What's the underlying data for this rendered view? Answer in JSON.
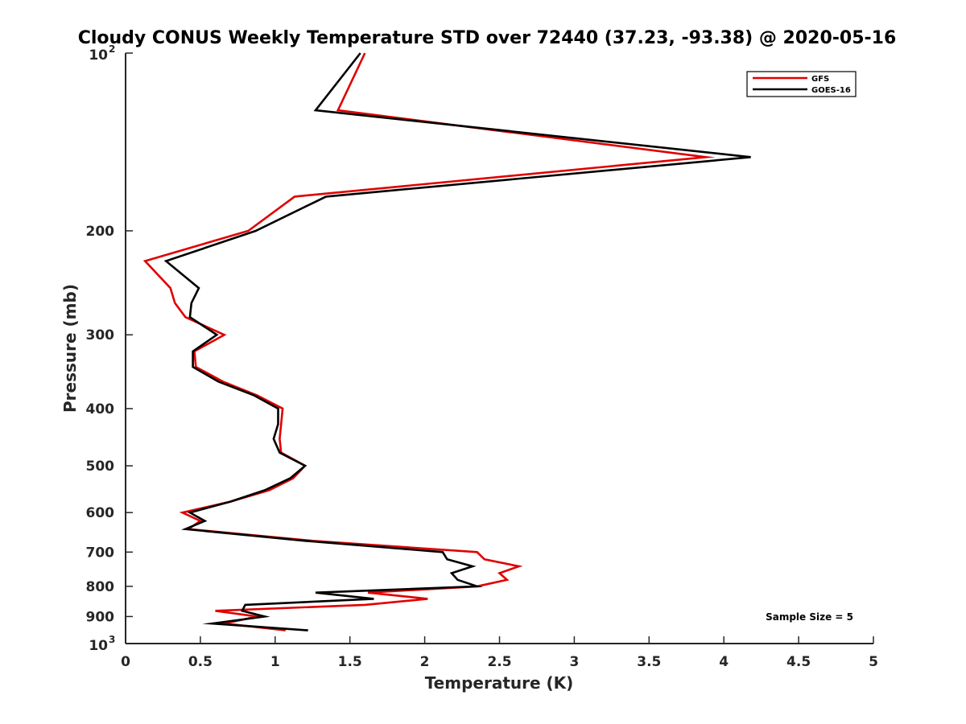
{
  "chart_data": {
    "type": "line",
    "title": "Cloudy CONUS Weekly Temperature STD over 72440 (37.23, -93.38) @ 2020-05-16",
    "xlabel": "Temperature (K)",
    "ylabel": "Pressure (mb)",
    "xlim": [
      0,
      5
    ],
    "ylim": [
      100,
      1000
    ],
    "y_scale": "log",
    "y_reversed": true,
    "grid": false,
    "legend_position": "top-right",
    "x_ticks": [
      {
        "value": 0,
        "label": "0"
      },
      {
        "value": 0.5,
        "label": "0.5"
      },
      {
        "value": 1,
        "label": "1"
      },
      {
        "value": 1.5,
        "label": "1.5"
      },
      {
        "value": 2,
        "label": "2"
      },
      {
        "value": 2.5,
        "label": "2.5"
      },
      {
        "value": 3,
        "label": "3"
      },
      {
        "value": 3.5,
        "label": "3.5"
      },
      {
        "value": 4,
        "label": "4"
      },
      {
        "value": 4.5,
        "label": "4.5"
      },
      {
        "value": 5,
        "label": "5"
      }
    ],
    "y_ticks": [
      {
        "value": 100,
        "label": "10",
        "exp": "2"
      },
      {
        "value": 200,
        "label": "200",
        "exp": ""
      },
      {
        "value": 300,
        "label": "300",
        "exp": ""
      },
      {
        "value": 400,
        "label": "400",
        "exp": ""
      },
      {
        "value": 500,
        "label": "500",
        "exp": ""
      },
      {
        "value": 600,
        "label": "600",
        "exp": ""
      },
      {
        "value": 700,
        "label": "700",
        "exp": ""
      },
      {
        "value": 800,
        "label": "800",
        "exp": ""
      },
      {
        "value": 900,
        "label": "900",
        "exp": ""
      },
      {
        "value": 1000,
        "label": "10",
        "exp": "3"
      }
    ],
    "series": [
      {
        "name": "GFS",
        "color": "#e00000",
        "points": [
          [
            1.6,
            100
          ],
          [
            1.42,
            125
          ],
          [
            3.88,
            150
          ],
          [
            1.13,
            175
          ],
          [
            0.82,
            200
          ],
          [
            0.13,
            225
          ],
          [
            0.3,
            250
          ],
          [
            0.33,
            265
          ],
          [
            0.4,
            280
          ],
          [
            0.66,
            300
          ],
          [
            0.46,
            320
          ],
          [
            0.47,
            340
          ],
          [
            0.65,
            360
          ],
          [
            0.88,
            380
          ],
          [
            1.05,
            400
          ],
          [
            1.04,
            425
          ],
          [
            1.03,
            450
          ],
          [
            1.04,
            475
          ],
          [
            1.2,
            500
          ],
          [
            1.12,
            525
          ],
          [
            0.96,
            550
          ],
          [
            0.7,
            575
          ],
          [
            0.38,
            600
          ],
          [
            0.5,
            620
          ],
          [
            0.42,
            640
          ],
          [
            1.25,
            670
          ],
          [
            2.35,
            700
          ],
          [
            2.4,
            720
          ],
          [
            2.63,
            740
          ],
          [
            2.5,
            760
          ],
          [
            2.55,
            780
          ],
          [
            2.35,
            800
          ],
          [
            1.62,
            820
          ],
          [
            2.02,
            840
          ],
          [
            1.6,
            860
          ],
          [
            0.6,
            880
          ],
          [
            0.88,
            900
          ],
          [
            0.66,
            925
          ],
          [
            1.07,
            950
          ]
        ]
      },
      {
        "name": "GOES-16",
        "color": "#000000",
        "points": [
          [
            1.57,
            100
          ],
          [
            1.27,
            125
          ],
          [
            4.18,
            150
          ],
          [
            1.34,
            175
          ],
          [
            0.87,
            200
          ],
          [
            0.27,
            225
          ],
          [
            0.49,
            250
          ],
          [
            0.44,
            265
          ],
          [
            0.43,
            280
          ],
          [
            0.61,
            300
          ],
          [
            0.45,
            320
          ],
          [
            0.45,
            340
          ],
          [
            0.62,
            360
          ],
          [
            0.86,
            380
          ],
          [
            1.02,
            400
          ],
          [
            1.02,
            425
          ],
          [
            0.99,
            450
          ],
          [
            1.03,
            475
          ],
          [
            1.2,
            500
          ],
          [
            1.1,
            525
          ],
          [
            0.93,
            550
          ],
          [
            0.7,
            575
          ],
          [
            0.43,
            600
          ],
          [
            0.53,
            620
          ],
          [
            0.4,
            640
          ],
          [
            1.2,
            670
          ],
          [
            2.12,
            700
          ],
          [
            2.15,
            720
          ],
          [
            2.32,
            740
          ],
          [
            2.18,
            760
          ],
          [
            2.22,
            780
          ],
          [
            2.35,
            800
          ],
          [
            1.27,
            820
          ],
          [
            1.66,
            840
          ],
          [
            0.8,
            860
          ],
          [
            0.78,
            880
          ],
          [
            0.93,
            900
          ],
          [
            0.58,
            925
          ],
          [
            1.22,
            950
          ]
        ]
      }
    ],
    "annotations": [
      {
        "text": "Sample Size = 5",
        "position": "bottom-right"
      }
    ]
  }
}
